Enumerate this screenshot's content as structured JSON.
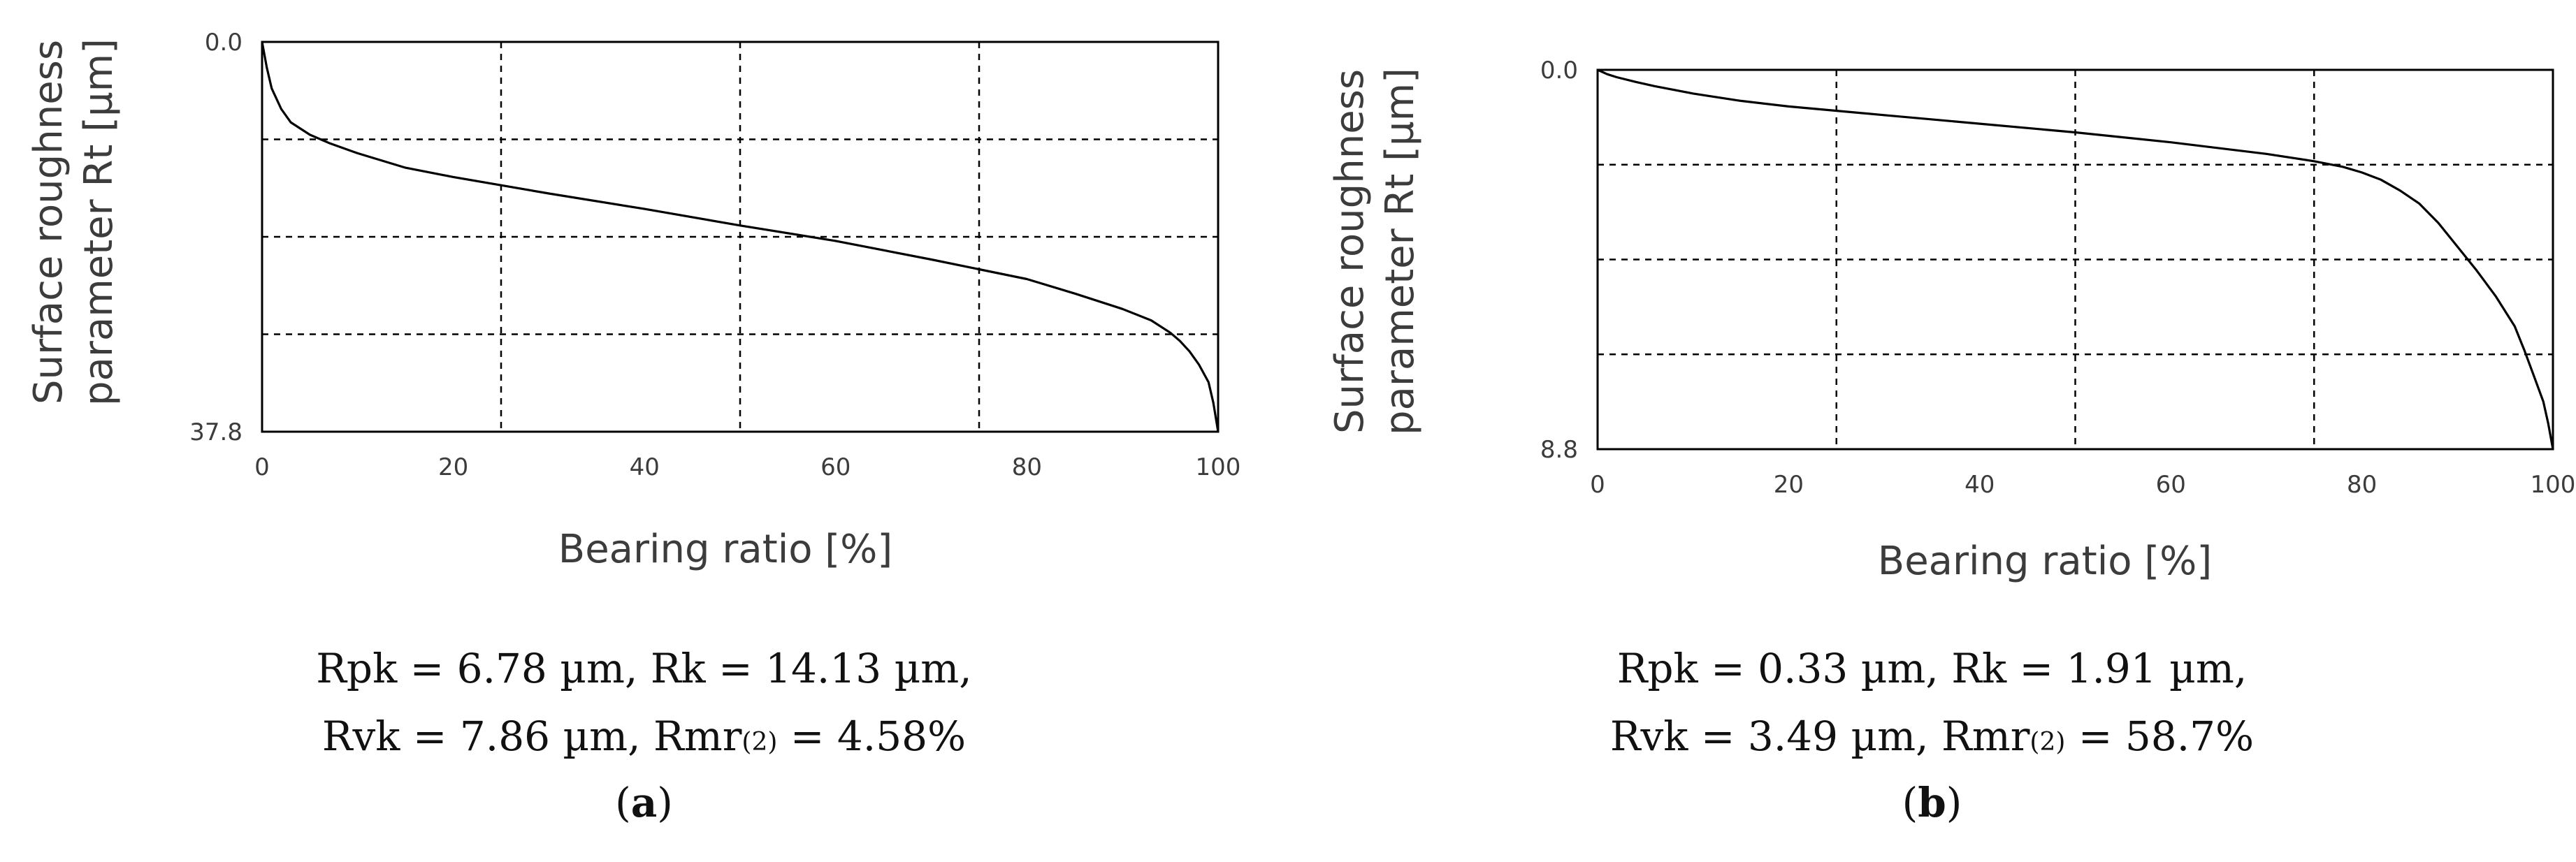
{
  "chart_data": [
    {
      "type": "line",
      "panel_label": "a",
      "ylabel_line1": "Surface roughness",
      "ylabel_line2": "parameter Rt [µm]",
      "xlabel": "Bearing ratio [%]",
      "ylim": [
        0.0,
        37.8
      ],
      "y_tick_labels": [
        "0.0",
        "37.8"
      ],
      "xlim": [
        0,
        100
      ],
      "x_tick_labels": [
        "0",
        "20",
        "40",
        "60",
        "80",
        "100"
      ],
      "x_ticks": [
        0,
        20,
        40,
        60,
        80,
        100
      ],
      "grid_x": [
        25,
        50,
        75
      ],
      "grid_y": [
        9.45,
        18.9,
        28.35
      ],
      "x": [
        0,
        0.5,
        1,
        2,
        3,
        5,
        7,
        10,
        15,
        20,
        25,
        30,
        40,
        50,
        60,
        70,
        80,
        85,
        90,
        93,
        95,
        96,
        97,
        98,
        99,
        99.5,
        100
      ],
      "y": [
        0,
        2.5,
        4.5,
        6.5,
        7.8,
        9.0,
        9.8,
        10.8,
        12.2,
        13.1,
        13.9,
        14.7,
        16.2,
        17.8,
        19.3,
        21.1,
        23.0,
        24.4,
        25.9,
        27.0,
        28.2,
        29.0,
        30.0,
        31.3,
        33.0,
        35.0,
        37.8
      ],
      "caption_line1": "Rpk = 6.78 µm, Rk = 14.13 µm,",
      "caption_line2_a": "Rvk = 7.86 µm, Rmr",
      "caption_line2_sub": "(2)",
      "caption_line2_b": " = 4.58%"
    },
    {
      "type": "line",
      "panel_label": "b",
      "ylabel_line1": "Surface roughness",
      "ylabel_line2": "parameter Rt [µm]",
      "xlabel": "Bearing ratio [%]",
      "ylim": [
        0.0,
        8.8
      ],
      "y_tick_labels": [
        "0.0",
        "8.8"
      ],
      "xlim": [
        0,
        100
      ],
      "x_tick_labels": [
        "0",
        "20",
        "40",
        "60",
        "80",
        "100"
      ],
      "x_ticks": [
        0,
        20,
        40,
        60,
        80,
        100
      ],
      "grid_x": [
        25,
        50,
        75
      ],
      "grid_y": [
        2.2,
        4.4,
        6.6
      ],
      "x": [
        0,
        1,
        2,
        4,
        6,
        10,
        15,
        20,
        30,
        40,
        50,
        60,
        70,
        75,
        78,
        80,
        82,
        84,
        86,
        88,
        90,
        92,
        94,
        96,
        97,
        98,
        99,
        99.5,
        100
      ],
      "y": [
        0,
        0.1,
        0.17,
        0.28,
        0.38,
        0.55,
        0.72,
        0.85,
        1.05,
        1.25,
        1.45,
        1.68,
        1.95,
        2.12,
        2.25,
        2.38,
        2.55,
        2.8,
        3.1,
        3.55,
        4.1,
        4.65,
        5.25,
        5.95,
        6.5,
        7.1,
        7.7,
        8.2,
        8.8
      ],
      "caption_line1": "Rpk = 0.33 µm, Rk = 1.91 µm,",
      "caption_line2_a": "Rvk = 3.49 µm, Rmr",
      "caption_line2_sub": "(2)",
      "caption_line2_b": " = 58.7%"
    }
  ],
  "colors": {
    "line": "#000000",
    "grid": "#000000",
    "axis": "#000000",
    "text": "#3c3c3c"
  }
}
